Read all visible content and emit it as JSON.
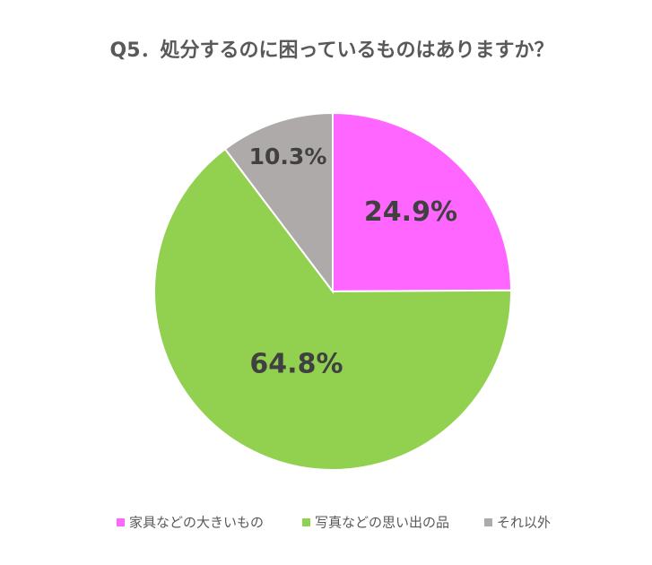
{
  "chart_data": {
    "type": "pie",
    "title": "Q5．処分するのに困っているものはありますか？",
    "categories": [
      "家具などの大きいもの",
      "写真などの思い出の品",
      "それ以外"
    ],
    "values": [
      24.9,
      64.8,
      10.3
    ],
    "value_labels": [
      "24.9%",
      "64.8%",
      "10.3%"
    ],
    "colors": [
      "#ff66ff",
      "#92d050",
      "#aeaaaa"
    ],
    "legend": "bottom"
  }
}
